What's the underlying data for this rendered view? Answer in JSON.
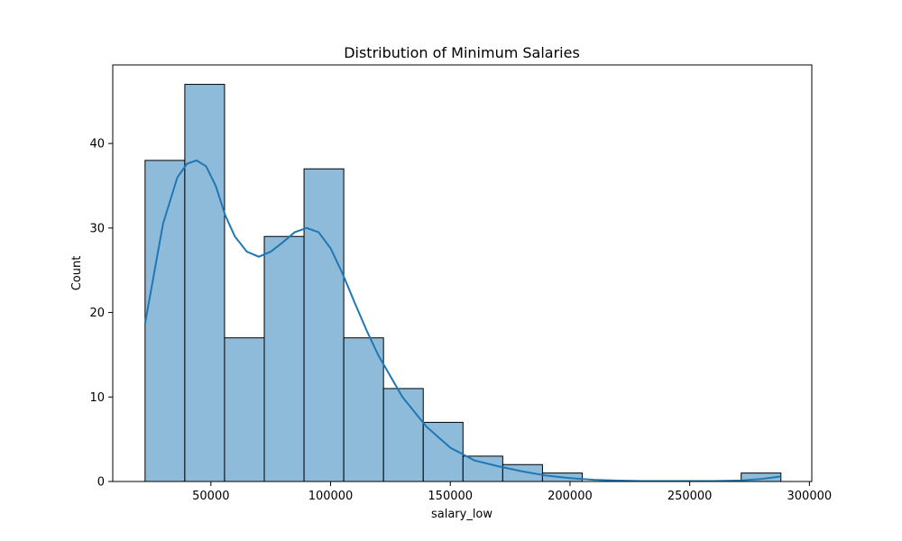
{
  "chart_data": {
    "type": "bar",
    "title": "Distribution of Minimum Salaries",
    "xlabel": "salary_low",
    "ylabel": "Count",
    "grid": false,
    "xlim": [
      9000,
      301000
    ],
    "ylim": [
      0,
      49.3
    ],
    "x_ticks": [
      50000,
      100000,
      150000,
      200000,
      250000,
      300000
    ],
    "y_ticks": [
      0,
      10,
      20,
      30,
      40
    ],
    "bin_edges": [
      22500,
      39100,
      55700,
      72300,
      88900,
      105500,
      122100,
      138700,
      155300,
      171900,
      188500,
      205100,
      221700,
      238300,
      254900,
      271500,
      288100
    ],
    "values": [
      38,
      47,
      17,
      29,
      37,
      17,
      11,
      7,
      3,
      2,
      1,
      0,
      0,
      0,
      0,
      1
    ],
    "kde": {
      "x": [
        22500,
        30000,
        36000,
        40000,
        44000,
        48000,
        52000,
        56000,
        60000,
        65000,
        70000,
        75000,
        80000,
        85000,
        90000,
        95000,
        100000,
        105000,
        110000,
        115000,
        120000,
        130000,
        140000,
        150000,
        160000,
        170000,
        180000,
        190000,
        200000,
        210000,
        220000,
        230000,
        240000,
        250000,
        260000,
        270000,
        280000,
        288100
      ],
      "y": [
        18.7,
        30.5,
        36.0,
        37.6,
        38.0,
        37.3,
        35.0,
        31.5,
        29.0,
        27.2,
        26.6,
        27.2,
        28.3,
        29.5,
        30.0,
        29.5,
        27.6,
        24.6,
        21.2,
        17.9,
        14.9,
        10.0,
        6.5,
        4.0,
        2.5,
        1.8,
        1.2,
        0.7,
        0.4,
        0.2,
        0.1,
        0.05,
        0.05,
        0.05,
        0.05,
        0.1,
        0.3,
        0.6
      ]
    },
    "colors": {
      "bar_fill": "#8fbbda",
      "bar_edge": "#000000",
      "kde_line": "#1f77b4"
    }
  }
}
